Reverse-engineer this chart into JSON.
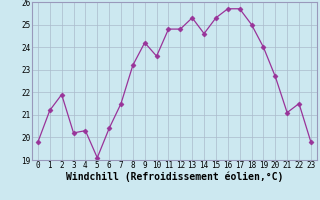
{
  "x": [
    0,
    1,
    2,
    3,
    4,
    5,
    6,
    7,
    8,
    9,
    10,
    11,
    12,
    13,
    14,
    15,
    16,
    17,
    18,
    19,
    20,
    21,
    22,
    23
  ],
  "y": [
    19.8,
    21.2,
    21.9,
    20.2,
    20.3,
    19.1,
    20.4,
    21.5,
    23.2,
    24.2,
    23.6,
    24.8,
    24.8,
    25.3,
    24.6,
    25.3,
    25.7,
    25.7,
    25.0,
    24.0,
    22.7,
    21.1,
    21.5,
    19.8
  ],
  "line_color": "#993399",
  "marker": "D",
  "markersize": 2.5,
  "linewidth": 0.9,
  "xlabel": "Windchill (Refroidissement éolien,°C)",
  "xlabel_fontsize": 7,
  "xlim": [
    -0.5,
    23.5
  ],
  "ylim": [
    19,
    26
  ],
  "yticks": [
    19,
    20,
    21,
    22,
    23,
    24,
    25,
    26
  ],
  "xticks": [
    0,
    1,
    2,
    3,
    4,
    5,
    6,
    7,
    8,
    9,
    10,
    11,
    12,
    13,
    14,
    15,
    16,
    17,
    18,
    19,
    20,
    21,
    22,
    23
  ],
  "tick_fontsize": 5.5,
  "background_color": "#cce8f0",
  "grid_color": "#aabbcc",
  "spine_color": "#9999bb"
}
